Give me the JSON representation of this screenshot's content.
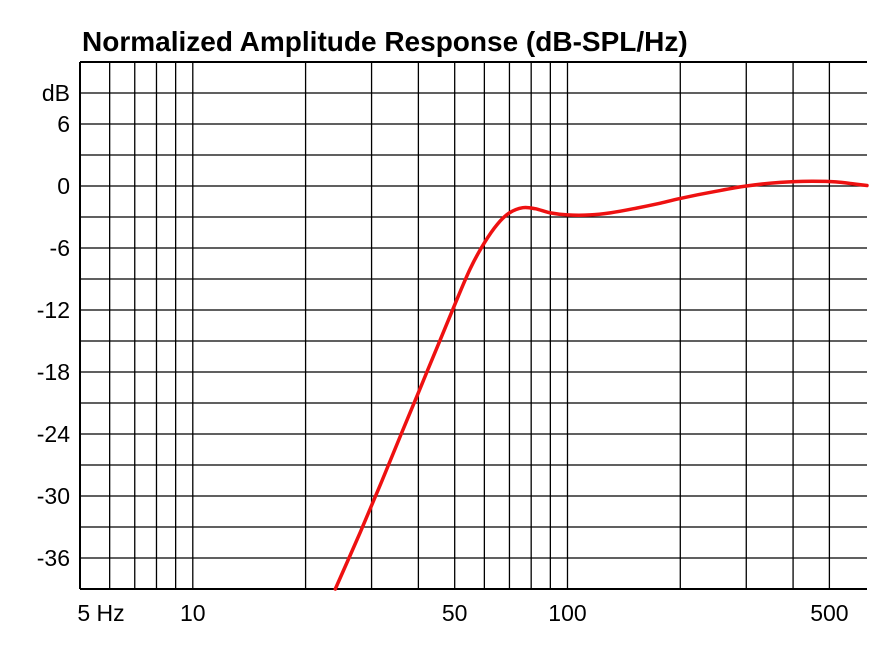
{
  "chart_data": {
    "type": "line",
    "title": "Normalized Amplitude Response (dB-SPL/Hz)",
    "y_unit_label": "dB",
    "x_scale": "log",
    "x_range": [
      5,
      630
    ],
    "y_range": [
      -39,
      12
    ],
    "grid": true,
    "x_tick_labels": [
      {
        "value": 5,
        "label": "5 Hz"
      },
      {
        "value": 10,
        "label": "10"
      },
      {
        "value": 50,
        "label": "50"
      },
      {
        "value": 100,
        "label": "100"
      },
      {
        "value": 500,
        "label": "500"
      }
    ],
    "y_tick_labels": [
      {
        "value": 6,
        "label": "6"
      },
      {
        "value": 0,
        "label": "0"
      },
      {
        "value": -6,
        "label": "-6"
      },
      {
        "value": -12,
        "label": "-12"
      },
      {
        "value": -18,
        "label": "-18"
      },
      {
        "value": -24,
        "label": "-24"
      },
      {
        "value": -30,
        "label": "-30"
      },
      {
        "value": -36,
        "label": "-36"
      }
    ],
    "series": [
      {
        "color": "#ee1111",
        "points": [
          [
            24,
            -39
          ],
          [
            28,
            -33.5
          ],
          [
            32,
            -28.5
          ],
          [
            36,
            -24
          ],
          [
            40,
            -20
          ],
          [
            45,
            -15.5
          ],
          [
            50,
            -11.5
          ],
          [
            55,
            -8
          ],
          [
            60,
            -5.5
          ],
          [
            65,
            -3.7
          ],
          [
            70,
            -2.6
          ],
          [
            76,
            -2.1
          ],
          [
            82,
            -2.2
          ],
          [
            90,
            -2.6
          ],
          [
            100,
            -2.8
          ],
          [
            115,
            -2.8
          ],
          [
            130,
            -2.6
          ],
          [
            150,
            -2.2
          ],
          [
            175,
            -1.7
          ],
          [
            200,
            -1.2
          ],
          [
            250,
            -0.5
          ],
          [
            300,
            0
          ],
          [
            370,
            0.35
          ],
          [
            450,
            0.45
          ],
          [
            520,
            0.4
          ],
          [
            580,
            0.2
          ],
          [
            630,
            0.05
          ]
        ]
      }
    ]
  }
}
